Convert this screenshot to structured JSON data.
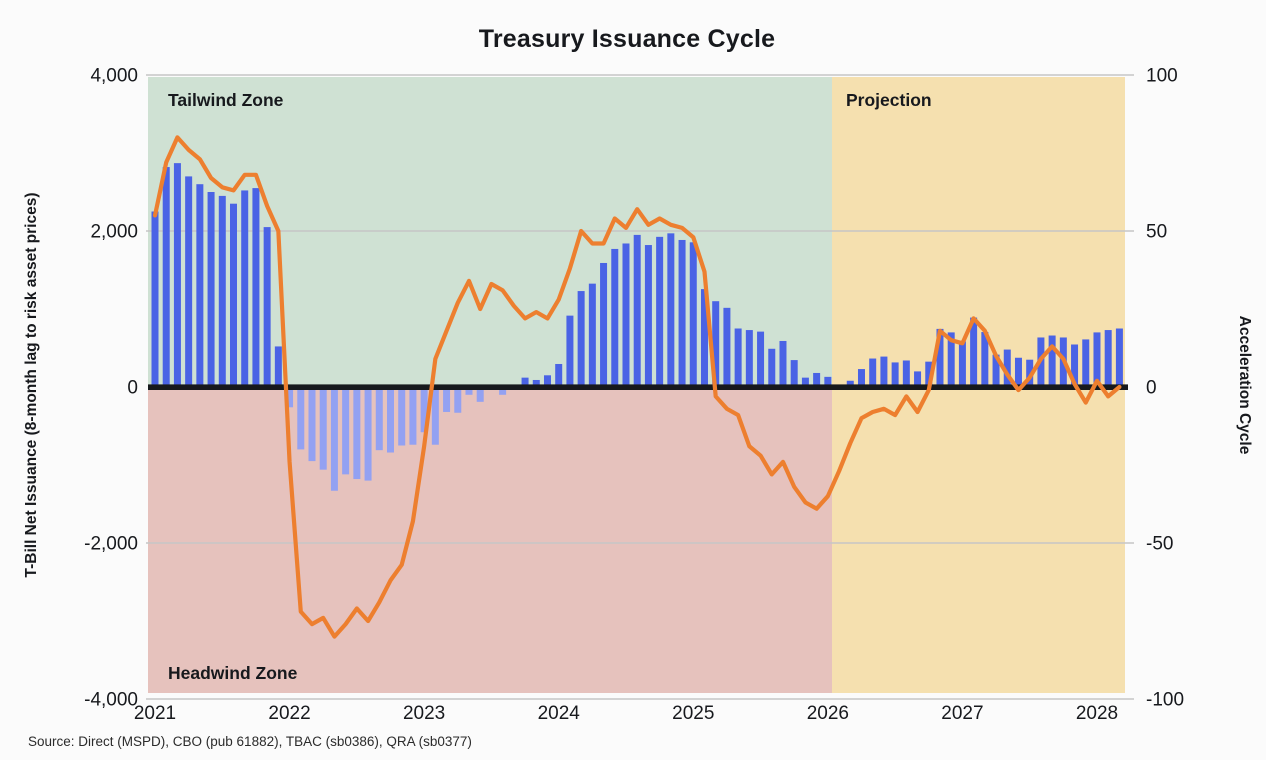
{
  "title": "Treasury Issuance Cycle",
  "source": "Source: Direct (MSPD), CBO (pub 61882), TBAC (sb0386), QRA (sb0377)",
  "chart_data": {
    "type": "bar",
    "title": "Treasury Issuance Cycle",
    "x_start": "2021-01",
    "x_interval": "monthly",
    "n_points": 87,
    "x_axis": {
      "ticks": [
        "2021",
        "2022",
        "2023",
        "2024",
        "2025",
        "2026",
        "2027",
        "2028"
      ]
    },
    "left_axis": {
      "label": "T-Bill Net Issuance (8-month lag to risk asset prices)",
      "ticks": [
        "4,000",
        "2,000",
        "0",
        "-2,000",
        "-4,000"
      ],
      "tick_values": [
        4000,
        2000,
        0,
        -2000,
        -4000
      ],
      "range": [
        -4000,
        4000
      ]
    },
    "right_axis": {
      "label": "Acceleration Cycle",
      "ticks": [
        "100",
        "50",
        "0",
        "-50",
        "-100"
      ],
      "tick_values": [
        100,
        50,
        0,
        -50,
        -100
      ],
      "range": [
        -100,
        100
      ]
    },
    "series": [
      {
        "name": "T-Bill Net Issuance",
        "type": "bar",
        "axis": "left",
        "values": [
          2250,
          2820,
          2870,
          2700,
          2600,
          2500,
          2450,
          2350,
          2520,
          2550,
          2050,
          520,
          -260,
          -800,
          -950,
          -1060,
          -1330,
          -1120,
          -1180,
          -1200,
          -810,
          -840,
          -750,
          -740,
          -580,
          -740,
          -320,
          -330,
          -100,
          -190,
          -30,
          -100,
          0,
          120,
          90,
          150,
          295,
          915,
          1230,
          1325,
          1590,
          1770,
          1840,
          1950,
          1820,
          1925,
          1970,
          1885,
          1855,
          1255,
          1100,
          1015,
          750,
          730,
          710,
          490,
          590,
          345,
          120,
          180,
          130,
          20,
          80,
          230,
          365,
          390,
          315,
          340,
          200,
          325,
          745,
          700,
          585,
          890,
          705,
          415,
          480,
          375,
          350,
          635,
          660,
          635,
          545,
          610,
          700,
          730,
          750
        ]
      },
      {
        "name": "Acceleration Cycle",
        "type": "line",
        "axis": "right",
        "values": [
          55,
          72,
          80,
          76,
          73,
          67,
          64,
          63,
          68,
          68,
          58,
          50,
          -24,
          -72,
          -76,
          -74,
          -80,
          -76,
          -71,
          -75,
          -69,
          -62,
          -57,
          -43,
          -19,
          9,
          18,
          27,
          34,
          25,
          33,
          31,
          26,
          22,
          24,
          22,
          28,
          38,
          50,
          46,
          46,
          54,
          51,
          57,
          52,
          54,
          52,
          51,
          48,
          37,
          -3,
          -7,
          -9,
          -19,
          -22,
          -28,
          -24,
          -32,
          -37,
          -39,
          -35,
          -27,
          -18,
          -10,
          -8,
          -7,
          -9,
          -3,
          -8,
          -1,
          18,
          15,
          14,
          22,
          18,
          10,
          4,
          -1,
          3,
          9,
          13,
          9,
          1,
          -5,
          2,
          -3,
          0
        ]
      }
    ],
    "zones": [
      {
        "label": "Tailwind Zone",
        "position": "upper half, 2021 through 2025",
        "color": "#cfe1d3",
        "label_color": "#4e9365"
      },
      {
        "label": "Headwind Zone",
        "position": "lower half, 2021 through 2025",
        "color": "#e6c2bd",
        "label_color": "#a2555a"
      },
      {
        "label": "Projection",
        "position": "full height, 2026 onward",
        "color": "#f5e0af",
        "label_color": "#8e7737"
      }
    ],
    "colors": {
      "bar_positive": "#4a63e5",
      "bar_negative": "#93a1f2",
      "line": "#ed7f2f",
      "zero_line": "#17191d",
      "gridline": "#c6c6c6"
    },
    "legend": "none",
    "grid": "horizontal"
  }
}
